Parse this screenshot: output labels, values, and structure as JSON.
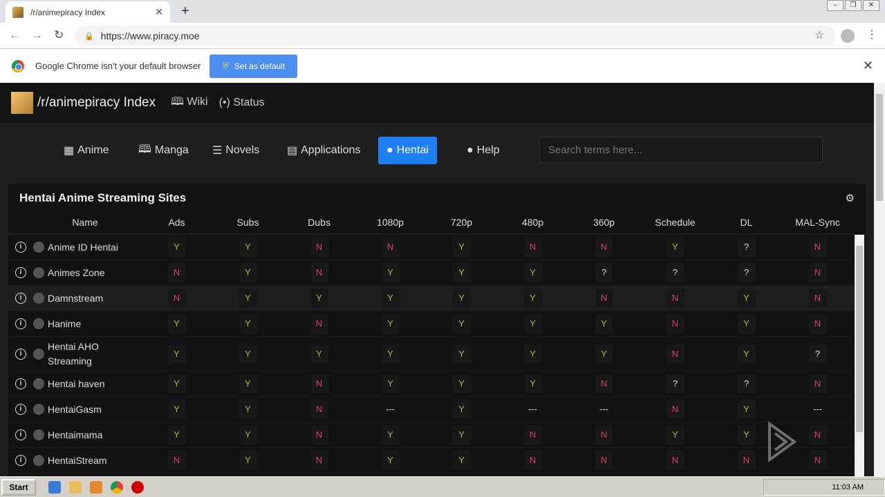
{
  "browser": {
    "tab_title": "/r/animepiracy Index",
    "url": "https://www.piracy.moe"
  },
  "infobar": {
    "message": "Google Chrome isn't your default browser",
    "button": "Set as default"
  },
  "site": {
    "brand": "/r/animepiracy Index",
    "links": [
      "Wiki",
      "Status"
    ],
    "nav": [
      {
        "label": "Anime",
        "icon": "film-icon"
      },
      {
        "label": "Manga",
        "icon": "book-icon"
      },
      {
        "label": "Novels",
        "icon": "document-icon"
      },
      {
        "label": "Applications",
        "icon": "window-icon"
      },
      {
        "label": "Hentai",
        "icon": "avatar-icon",
        "active": true
      },
      {
        "label": "Help",
        "icon": "avatar-icon"
      }
    ],
    "search_placeholder": "Search terms here..."
  },
  "table": {
    "title": "Hentai Anime Streaming Sites",
    "columns": [
      "Name",
      "Ads",
      "Subs",
      "Dubs",
      "1080p",
      "720p",
      "480p",
      "360p",
      "Schedule",
      "DL",
      "MAL-Sync"
    ],
    "rows": [
      {
        "name": "Anime ID Hentai",
        "values": [
          "Y",
          "Y",
          "N",
          "N",
          "Y",
          "N",
          "N",
          "Y",
          "?",
          "N"
        ]
      },
      {
        "name": "Animes Zone",
        "values": [
          "N",
          "Y",
          "N",
          "Y",
          "Y",
          "Y",
          "?",
          "?",
          "?",
          "N"
        ]
      },
      {
        "name": "Damnstream",
        "values": [
          "N",
          "Y",
          "Y",
          "Y",
          "Y",
          "Y",
          "N",
          "N",
          "Y",
          "N"
        ]
      },
      {
        "name": "Hanime",
        "values": [
          "Y",
          "Y",
          "N",
          "Y",
          "Y",
          "Y",
          "Y",
          "N",
          "Y",
          "N"
        ]
      },
      {
        "name": "Hentai AHO Streaming",
        "values": [
          "Y",
          "Y",
          "Y",
          "Y",
          "Y",
          "Y",
          "Y",
          "N",
          "Y",
          "?"
        ]
      },
      {
        "name": "Hentai haven",
        "values": [
          "Y",
          "Y",
          "N",
          "Y",
          "Y",
          "Y",
          "N",
          "?",
          "?",
          "N"
        ]
      },
      {
        "name": "HentaiGasm",
        "values": [
          "Y",
          "Y",
          "N",
          "---",
          "Y",
          "---",
          "---",
          "N",
          "Y",
          "---"
        ]
      },
      {
        "name": "Hentaimama",
        "values": [
          "Y",
          "Y",
          "N",
          "Y",
          "Y",
          "N",
          "N",
          "Y",
          "Y",
          "N"
        ]
      },
      {
        "name": "HentaiStream",
        "values": [
          "N",
          "Y",
          "N",
          "Y",
          "Y",
          "N",
          "N",
          "N",
          "N",
          "N"
        ]
      }
    ]
  },
  "watermark": "ANY RUN",
  "taskbar": {
    "start": "Start",
    "clock": "11:03 AM"
  },
  "colors": {
    "yes": "#8fc04a",
    "no": "#d84060",
    "accent": "#1e7ff5"
  }
}
